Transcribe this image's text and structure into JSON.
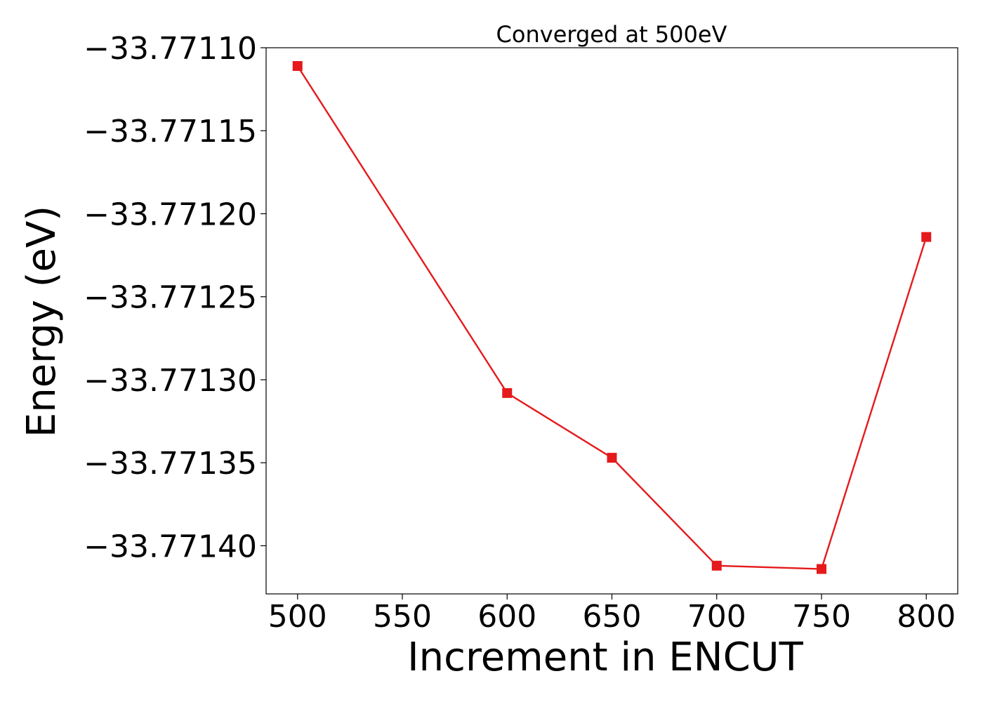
{
  "chart_data": {
    "type": "line",
    "title": "Converged at 500eV",
    "xlabel": "Increment in ENCUT",
    "ylabel": "Energy (eV)",
    "x": [
      500,
      600,
      650,
      700,
      750,
      800
    ],
    "series": [
      {
        "values": [
          -33.771111,
          -33.771308,
          -33.771347,
          -33.771412,
          -33.771414,
          -33.771214
        ],
        "color": "#e41a1c",
        "marker": "square"
      }
    ],
    "xticks": [
      500,
      550,
      600,
      650,
      700,
      750,
      800
    ],
    "xtick_labels": [
      "500",
      "550",
      "600",
      "650",
      "700",
      "750",
      "800"
    ],
    "yticks": [
      -33.7711,
      -33.77115,
      -33.7712,
      -33.77125,
      -33.7713,
      -33.77135,
      -33.7714
    ],
    "ytick_labels": [
      "−33.77110",
      "−33.77115",
      "−33.77120",
      "−33.77125",
      "−33.77130",
      "−33.77135",
      "−33.77140"
    ],
    "xlim": [
      485,
      815
    ],
    "ylim": [
      -33.771429,
      -33.7711
    ],
    "grid": false,
    "legend": "none"
  }
}
